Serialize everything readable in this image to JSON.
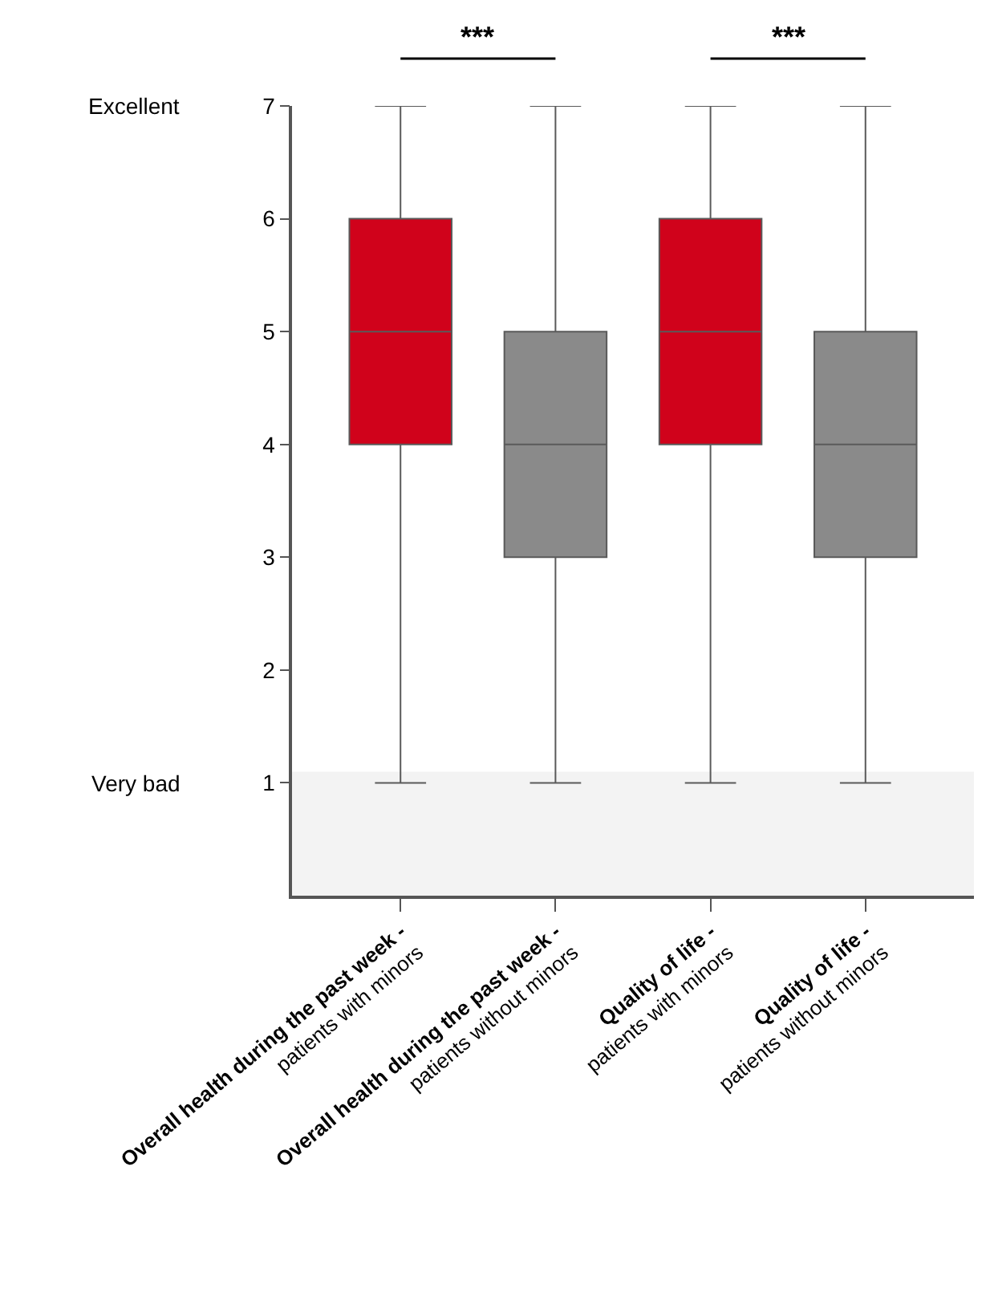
{
  "chart_data": {
    "type": "box",
    "categories": [
      "Overall health during the past week - patients with minors",
      "Overall health during the past week - patients without minors",
      "Quality of life - patients with minors",
      "Quality of life - patients without minors"
    ],
    "boxes": [
      {
        "low": 1,
        "q1": 4,
        "median": 5,
        "q3": 6,
        "high": 7
      },
      {
        "low": 1,
        "q1": 3,
        "median": 4,
        "q3": 5,
        "high": 7
      },
      {
        "low": 1,
        "q1": 4,
        "median": 5,
        "q3": 6,
        "high": 7
      },
      {
        "low": 1,
        "q1": 3,
        "median": 4,
        "q3": 5,
        "high": 7
      }
    ],
    "colors": [
      "#d0021b",
      "#8a8a8a",
      "#d0021b",
      "#8a8a8a"
    ],
    "ylim": [
      0,
      7
    ],
    "yticks": [
      1,
      2,
      3,
      4,
      5,
      6,
      7
    ],
    "bands": [
      {
        "axis": "y",
        "from": 0,
        "to": 1.1,
        "color": "#f3f3f3"
      }
    ],
    "annotations": [
      "Excellent",
      "Very bad",
      "***",
      "***"
    ],
    "grid": false
  }
}
